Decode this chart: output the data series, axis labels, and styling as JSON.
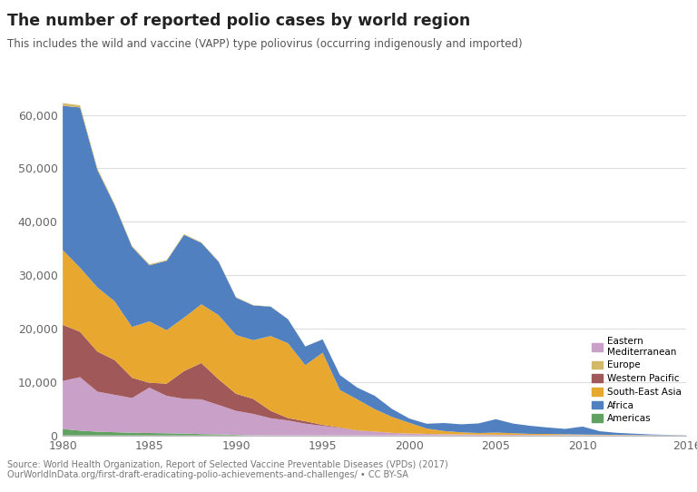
{
  "title": "The number of reported polio cases by world region",
  "subtitle": "This includes the wild and vaccine (VAPP) type poliovirus (occurring indigenously and imported)",
  "source_line1": "Source: World Health Organization, Report of Selected Vaccine Preventable Diseases (VPDs) (2017)",
  "source_line2": "OurWorldInData.org/first-draft-eradicating-polio-achievements-and-challenges/ • CC BY-SA",
  "years": [
    1980,
    1981,
    1982,
    1983,
    1984,
    1985,
    1986,
    1987,
    1988,
    1989,
    1990,
    1991,
    1992,
    1993,
    1994,
    1995,
    1996,
    1997,
    1998,
    1999,
    2000,
    2001,
    2002,
    2003,
    2004,
    2005,
    2006,
    2007,
    2008,
    2009,
    2010,
    2011,
    2012,
    2013,
    2014,
    2015,
    2016
  ],
  "regions": [
    "Eastern Mediterranean",
    "Europe",
    "Western Pacific",
    "South-East Asia",
    "Africa",
    "Americas"
  ],
  "colors": {
    "Eastern Mediterranean": "#c8a0c8",
    "Europe": "#d4b86a",
    "Western Pacific": "#a05858",
    "South-East Asia": "#e8a830",
    "Africa": "#5080c0",
    "Americas": "#60a060"
  },
  "data": {
    "Americas": [
      1200,
      900,
      700,
      600,
      500,
      450,
      400,
      350,
      250,
      200,
      100,
      30,
      10,
      5,
      3,
      2,
      1,
      1,
      1,
      1,
      1,
      1,
      0,
      0,
      0,
      0,
      0,
      0,
      0,
      0,
      0,
      0,
      0,
      0,
      0,
      0,
      0
    ],
    "Eastern Mediterranean": [
      9000,
      10000,
      7500,
      7000,
      6500,
      8500,
      7000,
      6500,
      6500,
      5500,
      4500,
      4000,
      3200,
      2800,
      2200,
      1800,
      1400,
      900,
      700,
      450,
      350,
      280,
      220,
      180,
      150,
      130,
      110,
      90,
      80,
      70,
      60,
      50,
      40,
      35,
      28,
      22,
      18
    ],
    "Western Pacific": [
      10500,
      8500,
      7500,
      6500,
      3800,
      900,
      2300,
      5200,
      6800,
      4800,
      3200,
      2800,
      1400,
      450,
      450,
      180,
      90,
      45,
      28,
      18,
      9,
      5,
      4,
      3,
      2,
      2,
      1,
      1,
      1,
      1,
      0,
      0,
      0,
      0,
      0,
      0,
      0
    ],
    "South-East Asia": [
      14000,
      12000,
      12000,
      11000,
      9500,
      11500,
      10000,
      10000,
      11000,
      12000,
      11000,
      11000,
      14000,
      14000,
      10500,
      13500,
      7000,
      5800,
      4200,
      3000,
      2000,
      1000,
      600,
      400,
      300,
      400,
      300,
      200,
      200,
      150,
      100,
      80,
      60,
      40,
      20,
      10,
      6
    ],
    "Africa": [
      27000,
      30000,
      22000,
      18000,
      15000,
      10500,
      13000,
      15500,
      11500,
      10000,
      7000,
      6500,
      5500,
      4500,
      3500,
      2500,
      2800,
      2200,
      2500,
      1500,
      800,
      900,
      1500,
      1500,
      1800,
      2500,
      1800,
      1500,
      1200,
      1000,
      1500,
      650,
      380,
      250,
      130,
      65,
      25
    ],
    "Europe": [
      500,
      400,
      300,
      200,
      180,
      180,
      140,
      140,
      100,
      90,
      90,
      70,
      45,
      28,
      18,
      9,
      5,
      5,
      5,
      3,
      2,
      1,
      1,
      1,
      0,
      0,
      0,
      0,
      0,
      0,
      0,
      0,
      0,
      0,
      0,
      0,
      0
    ]
  },
  "ylim": [
    0,
    70000
  ],
  "yticks": [
    0,
    10000,
    20000,
    30000,
    40000,
    50000,
    60000
  ],
  "ytick_labels": [
    "0",
    "10,000",
    "20,000",
    "30,000",
    "40,000",
    "50,000",
    "60,000"
  ],
  "xticks": [
    1980,
    1985,
    1990,
    1995,
    2000,
    2005,
    2010,
    2016
  ],
  "bg_color": "#ffffff",
  "grid_color": "#dddddd",
  "logo_bg": "#c0392b",
  "logo_text_color": "#ffffff"
}
